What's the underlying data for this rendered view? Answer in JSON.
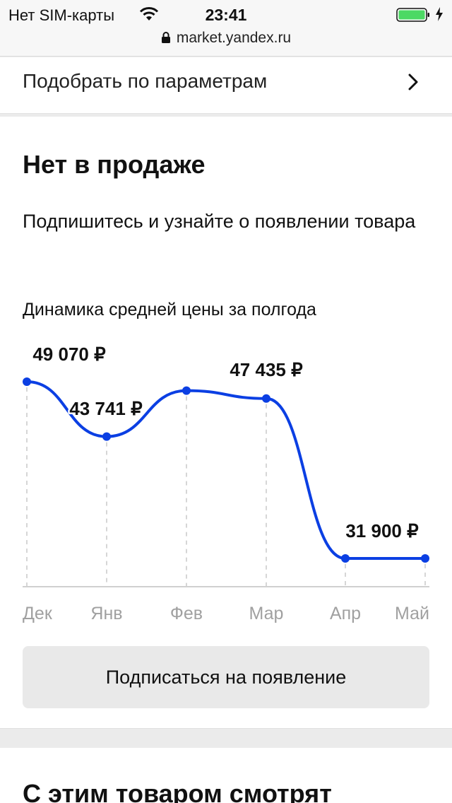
{
  "status_bar": {
    "carrier": "Нет SIM-карты",
    "time": "23:41",
    "url": "market.yandex.ru",
    "battery_color": "#4cd964"
  },
  "filter": {
    "label": "Подобрать по параметрам",
    "icon": "chevron-right-icon"
  },
  "availability": {
    "title": "Нет в продаже",
    "subtitle": "Подпишитесь и узнайте о появлении товара",
    "chart_caption": "Динамика средней цены за полгода",
    "subscribe_label": "Подписаться на появление"
  },
  "chart_data": {
    "type": "line",
    "x": [
      "Дек",
      "Янв",
      "Фев",
      "Мар",
      "Апр",
      "Май"
    ],
    "values": [
      49070,
      43741,
      48200,
      47435,
      31900,
      31900
    ],
    "point_labels": [
      "49 070 ₽",
      "43 741 ₽",
      "",
      "47 435 ₽",
      "31 900 ₽",
      ""
    ],
    "line_color": "#0b3fe3",
    "grid": false
  },
  "related": {
    "title": "С этим товаром смотрят"
  }
}
